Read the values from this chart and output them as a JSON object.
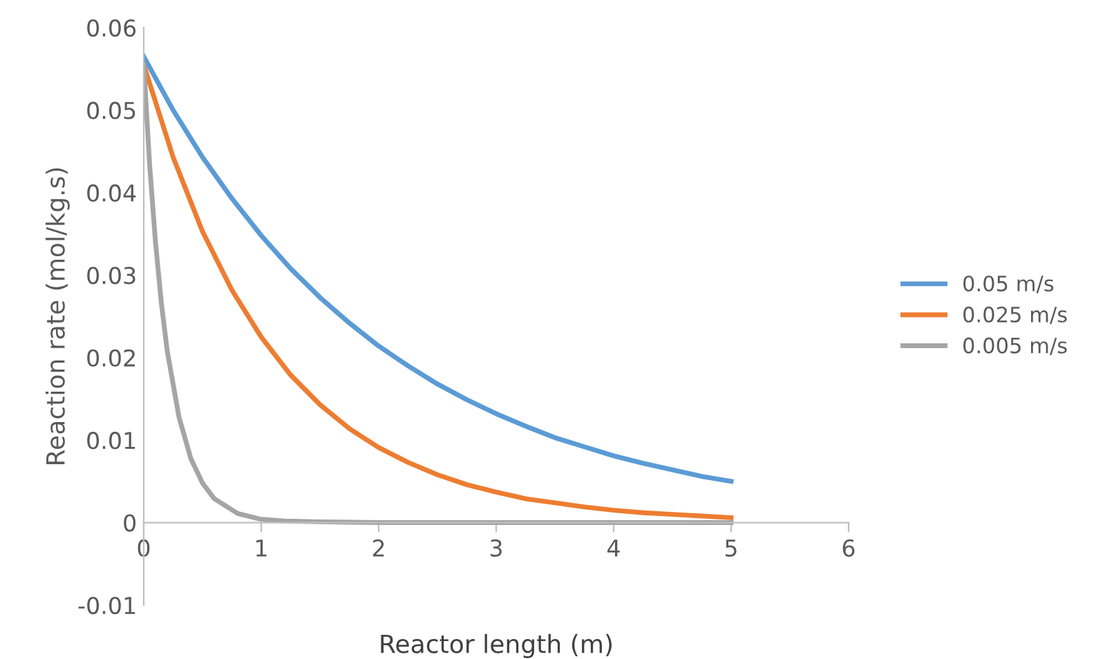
{
  "chart_data": {
    "type": "line",
    "xlabel": "Reactor length (m)",
    "ylabel": "Reaction rate (mol/kg.s)",
    "xlim": [
      0,
      6
    ],
    "xticks": [
      0,
      1,
      2,
      3,
      4,
      5,
      6
    ],
    "ylim": [
      -0.01,
      0.06
    ],
    "yticks": [
      -0.01,
      0,
      0.01,
      0.02,
      0.03,
      0.04,
      0.05,
      0.06
    ],
    "grid": false,
    "legend": "right",
    "marker": "none",
    "line_style": "solid",
    "series": [
      {
        "name": "0.05 m/s",
        "color": "#5b9bd5",
        "x": [
          0,
          0.25,
          0.5,
          0.75,
          1,
          1.25,
          1.5,
          1.75,
          2,
          2.25,
          2.5,
          2.75,
          3,
          3.25,
          3.5,
          3.75,
          4,
          4.25,
          4.5,
          4.75,
          5
        ],
        "values": [
          0.0565,
          0.05,
          0.0443,
          0.0393,
          0.0348,
          0.0308,
          0.0273,
          0.0242,
          0.0214,
          0.019,
          0.0168,
          0.0149,
          0.0132,
          0.0117,
          0.0103,
          0.0092,
          0.0081,
          0.0072,
          0.0064,
          0.0056,
          0.005
        ]
      },
      {
        "name": "0.025 m/s",
        "color": "#ed7d31",
        "x": [
          0,
          0.25,
          0.5,
          0.75,
          1,
          1.25,
          1.5,
          1.75,
          2,
          2.25,
          2.5,
          2.75,
          3,
          3.25,
          3.5,
          3.75,
          4,
          4.25,
          4.5,
          4.75,
          5
        ],
        "values": [
          0.0555,
          0.0443,
          0.0353,
          0.0282,
          0.0225,
          0.0179,
          0.0143,
          0.0114,
          0.0091,
          0.0073,
          0.0058,
          0.0046,
          0.0037,
          0.0029,
          0.0024,
          0.0019,
          0.0015,
          0.0012,
          0.001,
          0.0008,
          0.0006
        ]
      },
      {
        "name": "0.005 m/s",
        "color": "#a5a5a5",
        "x": [
          0,
          0.05,
          0.1,
          0.15,
          0.2,
          0.3,
          0.4,
          0.5,
          0.6,
          0.8,
          1,
          1.2,
          1.5,
          2,
          3,
          4,
          5
        ],
        "values": [
          0.0555,
          0.0434,
          0.034,
          0.0266,
          0.0208,
          0.0128,
          0.0078,
          0.0048,
          0.0029,
          0.0011,
          0.0004,
          0.0002,
          0.0001,
          0,
          0,
          0,
          0
        ]
      }
    ]
  }
}
